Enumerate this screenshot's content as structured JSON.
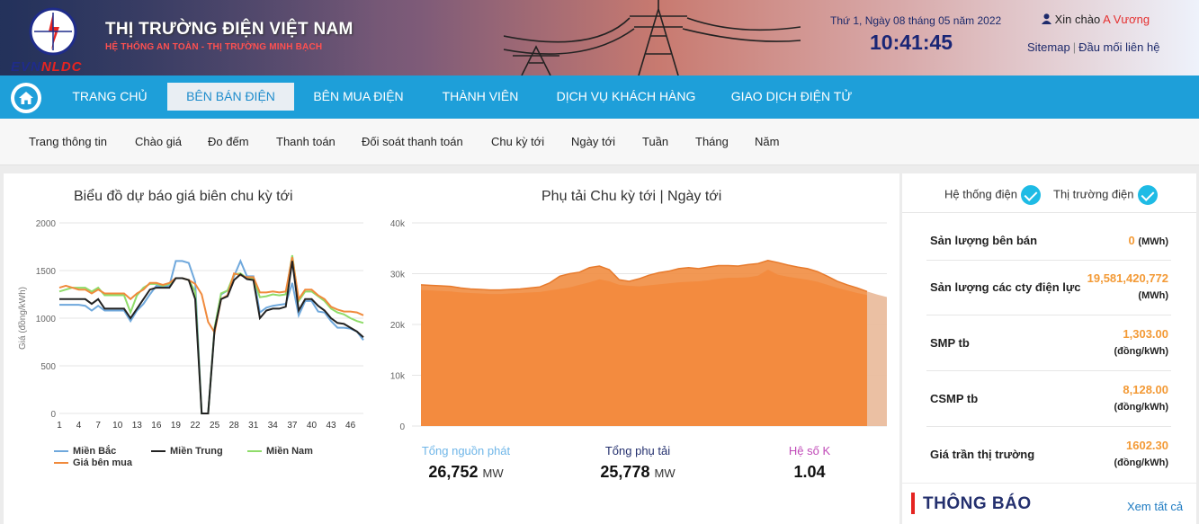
{
  "header": {
    "logo_evn": "EVN",
    "logo_nldc": "NLDC",
    "title": "THỊ TRƯỜNG ĐIỆN VIỆT NAM",
    "slogan": "HỆ THỐNG AN TOÀN - THỊ TRƯỜNG MINH BẠCH",
    "date": "Thứ 1, Ngày 08 tháng 05 năm 2022",
    "time": "10:41:45",
    "greeting": "Xin chào",
    "username": "A Vương",
    "sitemap": "Sitemap",
    "contact": "Đầu mối liên hệ"
  },
  "mainnav": {
    "items": [
      "TRANG CHỦ",
      "BÊN BÁN ĐIỆN",
      "BÊN MUA ĐIỆN",
      "THÀNH VIÊN",
      "DỊCH VỤ KHÁCH HÀNG",
      "GIAO DỊCH ĐIỆN TỬ"
    ],
    "active_index": 1
  },
  "subnav": {
    "items": [
      "Trang thông tin",
      "Chào giá",
      "Đo đếm",
      "Thanh toán",
      "Đối soát thanh toán",
      "Chu kỳ tới",
      "Ngày tới",
      "Tuần",
      "Tháng",
      "Năm"
    ]
  },
  "colors": {
    "nav_blue": "#1e9fd9",
    "accent_orange": "#f39a36",
    "mien_bac": "#6fa8dc",
    "mien_trung": "#222222",
    "mien_nam": "#8fdc6a",
    "gia_ben_mua": "#f08a3c",
    "area_fill": "#f08a3c",
    "k_label": "#c04ab8"
  },
  "chart_data": [
    {
      "type": "line",
      "title": "Biểu đồ dự báo giá biên chu kỳ tới",
      "ylabel": "Giá (đồng/kWh)",
      "xlabel": "",
      "ylim": [
        0,
        2000
      ],
      "yticks": [
        "2000",
        "1500",
        "1000",
        "500",
        "0"
      ],
      "xticks": [
        "1",
        "4",
        "7",
        "10",
        "13",
        "16",
        "19",
        "22",
        "25",
        "28",
        "31",
        "34",
        "37",
        "40",
        "43",
        "46"
      ],
      "x": [
        1,
        2,
        3,
        4,
        5,
        6,
        7,
        8,
        9,
        10,
        11,
        12,
        13,
        14,
        15,
        16,
        17,
        18,
        19,
        20,
        21,
        22,
        23,
        24,
        25,
        26,
        27,
        28,
        29,
        30,
        31,
        32,
        33,
        34,
        35,
        36,
        37,
        38,
        39,
        40,
        41,
        42,
        43,
        44,
        45,
        46,
        47,
        48
      ],
      "grid": true,
      "legend_position": "bottom",
      "series": [
        {
          "name": "Miền Bắc",
          "values": [
            1140,
            1140,
            1140,
            1140,
            1130,
            1080,
            1130,
            1080,
            1080,
            1080,
            1080,
            970,
            1080,
            1150,
            1250,
            1340,
            1330,
            1340,
            1600,
            1600,
            1580,
            1380,
            0,
            0,
            900,
            1250,
            1290,
            1440,
            1600,
            1440,
            1440,
            1060,
            1110,
            1130,
            1140,
            1150,
            1370,
            1030,
            1180,
            1180,
            1070,
            1060,
            970,
            900,
            900,
            890,
            860,
            770
          ]
        },
        {
          "name": "Miền Trung",
          "values": [
            1200,
            1200,
            1200,
            1200,
            1200,
            1150,
            1200,
            1100,
            1100,
            1100,
            1100,
            1000,
            1100,
            1200,
            1300,
            1320,
            1320,
            1320,
            1420,
            1420,
            1400,
            1200,
            0,
            0,
            880,
            1200,
            1230,
            1400,
            1460,
            1410,
            1400,
            1000,
            1080,
            1100,
            1100,
            1120,
            1600,
            1080,
            1200,
            1200,
            1130,
            1080,
            1000,
            950,
            940,
            900,
            860,
            800
          ]
        },
        {
          "name": "Miền Nam",
          "values": [
            1280,
            1300,
            1320,
            1320,
            1320,
            1280,
            1320,
            1240,
            1240,
            1240,
            1240,
            1060,
            1240,
            1320,
            1360,
            1360,
            1340,
            1360,
            1420,
            1420,
            1400,
            1280,
            0,
            0,
            900,
            1260,
            1290,
            1460,
            1470,
            1420,
            1420,
            1220,
            1230,
            1250,
            1240,
            1250,
            1660,
            1180,
            1280,
            1280,
            1230,
            1180,
            1100,
            1060,
            1040,
            1000,
            970,
            950
          ]
        },
        {
          "name": "Giá bên mua",
          "values": [
            1320,
            1340,
            1320,
            1300,
            1300,
            1260,
            1300,
            1260,
            1260,
            1260,
            1260,
            1200,
            1260,
            1300,
            1370,
            1370,
            1350,
            1370,
            1420,
            1420,
            1400,
            1360,
            1250,
            960,
            850,
            1200,
            1240,
            1470,
            1450,
            1430,
            1430,
            1270,
            1270,
            1280,
            1270,
            1280,
            1640,
            1200,
            1300,
            1300,
            1240,
            1200,
            1120,
            1090,
            1070,
            1070,
            1060,
            1030
          ]
        }
      ]
    },
    {
      "type": "area",
      "title": "Phụ tải Chu kỳ tới | Ngày tới",
      "ylim": [
        0,
        40000
      ],
      "yticks": [
        "40k",
        "30k",
        "20k",
        "10k",
        "0"
      ],
      "grid": true,
      "x": [
        1,
        2,
        3,
        4,
        5,
        6,
        7,
        8,
        9,
        10,
        11,
        12,
        13,
        14,
        15,
        16,
        17,
        18,
        19,
        20,
        21,
        22,
        23,
        24,
        25,
        26,
        27,
        28,
        29,
        30,
        31,
        32,
        33,
        34,
        35,
        36,
        37,
        38,
        39,
        40,
        41,
        42,
        43,
        44,
        45,
        46,
        47,
        48
      ],
      "series": [
        {
          "name": "Tổng nguồn phát",
          "values": [
            27800,
            27700,
            27600,
            27500,
            27200,
            27000,
            26900,
            26800,
            26800,
            26900,
            27000,
            27200,
            27400,
            28200,
            29500,
            30000,
            30300,
            31200,
            31500,
            30800,
            28800,
            28500,
            29000,
            29700,
            30200,
            30500,
            31000,
            31200,
            31000,
            31300,
            31600,
            31600,
            31500,
            31800,
            32000,
            32600,
            32200,
            31700,
            31300,
            31000,
            30400,
            29500,
            28500,
            27800,
            27200,
            26500,
            25900,
            25400
          ]
        },
        {
          "name": "Tổng phụ tải",
          "values": [
            26800,
            26700,
            26600,
            26500,
            26300,
            26200,
            26100,
            26000,
            26000,
            26100,
            26200,
            26300,
            26400,
            26700,
            27000,
            27300,
            27800,
            28300,
            28900,
            28500,
            27800,
            27600,
            27500,
            27700,
            27900,
            28100,
            28300,
            28400,
            28500,
            28700,
            29000,
            29200,
            29200,
            29300,
            29600,
            30800,
            29800,
            29400,
            29100,
            28800,
            28400,
            27800,
            27200,
            26700,
            26200,
            25800,
            25400,
            25200
          ]
        }
      ],
      "summary": {
        "nguon_phat_label": "Tổng nguồn phát",
        "nguon_phat_value": "26,752",
        "phu_tai_label": "Tổng phụ tải",
        "phu_tai_value": "25,778",
        "unit": "MW",
        "k_label": "Hệ số K",
        "k_value": "1.04"
      }
    }
  ],
  "sidebar": {
    "tab_he_thong": "Hệ thống điện",
    "tab_thi_truong": "Thị trường điện",
    "rows": [
      {
        "label": "Sản lượng bên bán",
        "value": "0",
        "unit": "(MWh)"
      },
      {
        "label": "Sản lượng các cty điện lực",
        "value": "19,581,420,772",
        "unit": "(MWh)"
      },
      {
        "label": "SMP tb",
        "value": "1,303.00",
        "unit": "(đồng/kWh)"
      },
      {
        "label": "CSMP tb",
        "value": "8,128.00",
        "unit": "(đồng/kWh)"
      },
      {
        "label": "Giá trần thị trường",
        "value": "1602.30",
        "unit": "(đồng/kWh)"
      }
    ]
  },
  "notice": {
    "title": "THÔNG BÁO",
    "view_all": "Xem tất cả"
  }
}
